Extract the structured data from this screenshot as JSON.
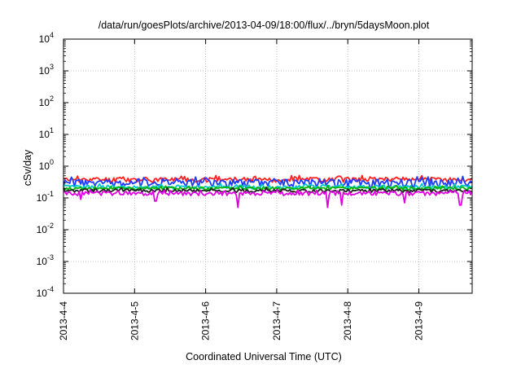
{
  "chart_data": {
    "type": "line",
    "title": "/data/run/goesPlots/archive/2013-04-09/18:00/flux/../bryn/5daysMoon.plot",
    "xlabel": "Coordinated Universal Time (UTC)",
    "ylabel": "cSv/day",
    "x_scale": "time",
    "xlim": [
      "2013-04-04",
      "2013-04-09 18:00"
    ],
    "x_ticks": [
      "2013-4-4",
      "2013-4-5",
      "2013-4-6",
      "2013-4-7",
      "2013-4-8",
      "2013-4-9"
    ],
    "y_scale": "log",
    "ylim": [
      0.0001,
      10000
    ],
    "y_ticks": [
      {
        "base": "10",
        "exp": "-4"
      },
      {
        "base": "10",
        "exp": "-3"
      },
      {
        "base": "10",
        "exp": "-2"
      },
      {
        "base": "10",
        "exp": "-1"
      },
      {
        "base": "10",
        "exp": "0"
      },
      {
        "base": "10",
        "exp": "1"
      },
      {
        "base": "10",
        "exp": "2"
      },
      {
        "base": "10",
        "exp": "3"
      },
      {
        "base": "10",
        "exp": "4"
      }
    ],
    "grid": true,
    "legend": "none",
    "series": [
      {
        "color": "#ff2020",
        "level": 0.38,
        "noise": 0.06,
        "seed": 11
      },
      {
        "color": "#1e3cff",
        "level": 0.3,
        "noise": 0.1,
        "seed": 23
      },
      {
        "color": "#00c8c8",
        "level": 0.22,
        "noise": 0.05,
        "seed": 37
      },
      {
        "color": "#00b400",
        "level": 0.2,
        "noise": 0.04,
        "seed": 41
      },
      {
        "color": "#202020",
        "level": 0.17,
        "noise": 0.04,
        "seed": 53
      },
      {
        "color": "#e000e0",
        "level": 0.14,
        "noise": 0.05,
        "seed": 67
      }
    ],
    "dips": [
      {
        "date": "2013-04-04 06:00",
        "value": 0.09
      },
      {
        "date": "2013-04-05 07:00",
        "value": 0.08
      },
      {
        "date": "2013-04-06 11:00",
        "value": 0.05
      },
      {
        "date": "2013-04-07 17:00",
        "value": 0.05
      },
      {
        "date": "2013-04-07 22:00",
        "value": 0.06
      },
      {
        "date": "2013-04-08 19:00",
        "value": 0.07
      },
      {
        "date": "2013-04-09 14:00",
        "value": 0.06
      }
    ]
  }
}
